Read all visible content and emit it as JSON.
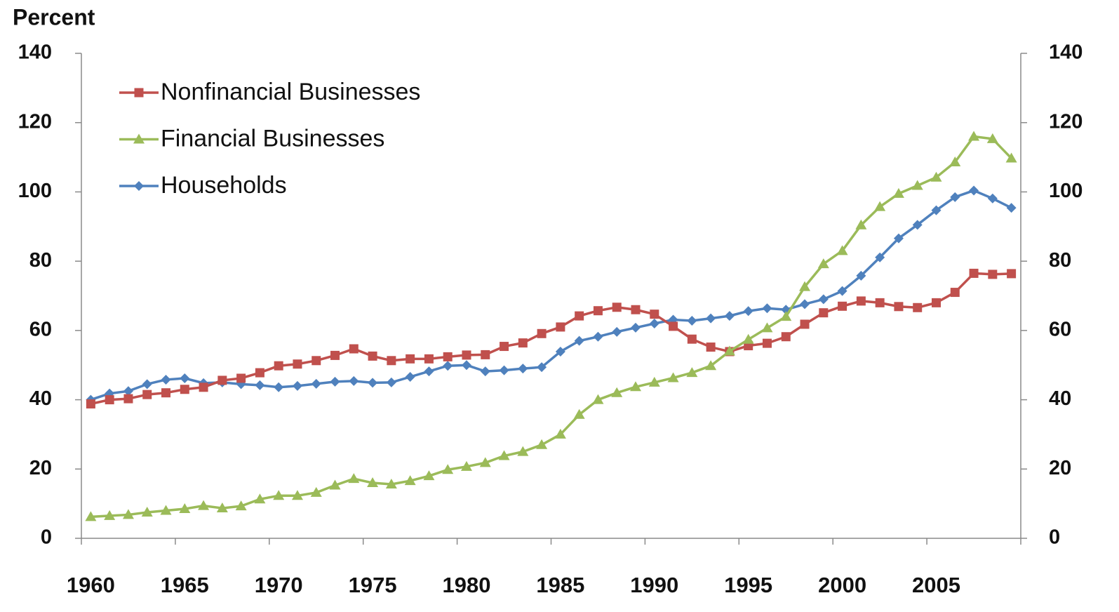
{
  "chart_data": {
    "type": "line",
    "y_label": "Percent",
    "categories": [
      "1960",
      null,
      null,
      null,
      null,
      "1965",
      null,
      null,
      null,
      null,
      "1970",
      null,
      null,
      null,
      null,
      "1975",
      null,
      null,
      null,
      null,
      "1980",
      null,
      null,
      null,
      null,
      "1985",
      null,
      null,
      null,
      null,
      "1990",
      null,
      null,
      null,
      null,
      "1995",
      null,
      null,
      null,
      null,
      "2000",
      null,
      null,
      null,
      null,
      "2005",
      null,
      null,
      null,
      null
    ],
    "series": [
      {
        "name": "Nonfinancial Businesses",
        "color": "#c0504d",
        "marker": "square",
        "values": [
          38.8,
          40,
          40.3,
          41.5,
          42,
          43,
          43.6,
          45.6,
          46.2,
          47.8,
          49.8,
          50.3,
          51.3,
          52.8,
          54.7,
          52.6,
          51.3,
          51.8,
          51.8,
          52.4,
          52.9,
          53,
          55.4,
          56.4,
          59.1,
          61,
          64.2,
          65.7,
          66.7,
          66,
          64.7,
          61.2,
          57.5,
          55.2,
          53.9,
          55.6,
          56.3,
          58.2,
          61.8,
          65.1,
          67,
          68.5,
          68,
          66.9,
          66.6,
          68,
          71,
          76.5,
          76.2,
          76.4
        ]
      },
      {
        "name": "Financial Businesses",
        "color": "#9bbb59",
        "marker": "triangle",
        "values": [
          6.2,
          6.5,
          6.8,
          7.5,
          8,
          8.5,
          9.4,
          8.7,
          9.3,
          11.3,
          12.3,
          12.3,
          13.2,
          15.3,
          17.2,
          16,
          15.6,
          16.6,
          18,
          19.8,
          20.7,
          21.8,
          23.8,
          25,
          27,
          30,
          35.7,
          40,
          42,
          43.7,
          45,
          46.3,
          47.8,
          49.8,
          54,
          57.4,
          60.7,
          64,
          72.6,
          79.2,
          83,
          90.4,
          95.7,
          99.5,
          101.8,
          104.2,
          108.6,
          116,
          115.3,
          109.7
        ]
      },
      {
        "name": "Households",
        "color": "#4f81bd",
        "marker": "diamond",
        "values": [
          40,
          41.8,
          42.5,
          44.5,
          45.8,
          46.2,
          44.8,
          45,
          44.5,
          44.2,
          43.6,
          44,
          44.6,
          45.2,
          45.4,
          44.9,
          45,
          46.6,
          48.2,
          49.8,
          50,
          48.2,
          48.5,
          49,
          49.4,
          53.9,
          57,
          58.2,
          59.6,
          60.8,
          62,
          63.1,
          62.8,
          63.5,
          64.2,
          65.6,
          66.4,
          66,
          67.6,
          69,
          71.4,
          75.8,
          81.1,
          86.6,
          90.5,
          94.7,
          98.5,
          100.4,
          98.1,
          95.4
        ]
      }
    ],
    "ylim": [
      0,
      140
    ],
    "yticks": [
      0,
      20,
      40,
      60,
      80,
      100,
      120,
      140
    ],
    "y2lim": [
      0,
      140
    ],
    "y2ticks": [
      0,
      20,
      40,
      60,
      80,
      100,
      120,
      140
    ],
    "grid": false,
    "legend": "upper left"
  }
}
